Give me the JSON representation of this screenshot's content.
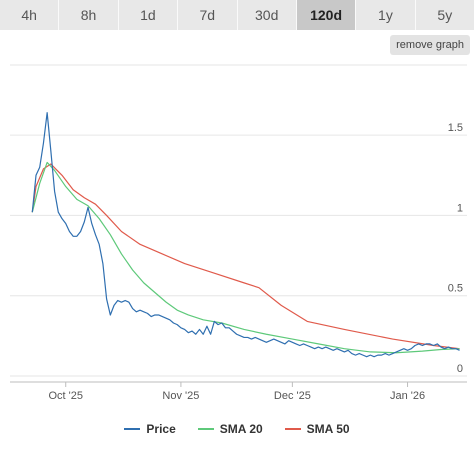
{
  "tabs": [
    {
      "label": "4h",
      "active": false
    },
    {
      "label": "8h",
      "active": false
    },
    {
      "label": "1d",
      "active": false
    },
    {
      "label": "7d",
      "active": false
    },
    {
      "label": "30d",
      "active": false
    },
    {
      "label": "120d",
      "active": true
    },
    {
      "label": "1y",
      "active": false
    },
    {
      "label": "5y",
      "active": false
    }
  ],
  "remove_graph_label": "remove graph",
  "chart_data": {
    "type": "line",
    "title": "",
    "xlabel": "",
    "ylabel": "",
    "ylim": [
      0,
      1.75
    ],
    "grid": true,
    "y_ticks": [
      {
        "value": 0,
        "label": "0"
      },
      {
        "value": 0.5,
        "label": "0.5"
      },
      {
        "value": 1,
        "label": "1"
      },
      {
        "value": 1.5,
        "label": "1.5"
      }
    ],
    "x_ticks": [
      {
        "value": "2025-10-01",
        "label": "Oct '25"
      },
      {
        "value": "2025-11-01",
        "label": "Nov '25"
      },
      {
        "value": "2025-12-01",
        "label": "Dec '25"
      },
      {
        "value": "2026-01-01",
        "label": "Jan '26"
      }
    ],
    "legend_position": "bottom",
    "series": [
      {
        "name": "Price",
        "color": "#2f6fb0",
        "points": [
          [
            "2025-09-22",
            1.02
          ],
          [
            "2025-09-23",
            1.25
          ],
          [
            "2025-09-24",
            1.3
          ],
          [
            "2025-09-25",
            1.45
          ],
          [
            "2025-09-26",
            1.64
          ],
          [
            "2025-09-27",
            1.4
          ],
          [
            "2025-09-28",
            1.15
          ],
          [
            "2025-09-29",
            1.02
          ],
          [
            "2025-09-30",
            0.98
          ],
          [
            "2025-10-01",
            0.95
          ],
          [
            "2025-10-02",
            0.9
          ],
          [
            "2025-10-03",
            0.87
          ],
          [
            "2025-10-04",
            0.87
          ],
          [
            "2025-10-05",
            0.9
          ],
          [
            "2025-10-06",
            0.96
          ],
          [
            "2025-10-07",
            1.05
          ],
          [
            "2025-10-08",
            0.95
          ],
          [
            "2025-10-09",
            0.88
          ],
          [
            "2025-10-10",
            0.82
          ],
          [
            "2025-10-11",
            0.7
          ],
          [
            "2025-10-12",
            0.48
          ],
          [
            "2025-10-13",
            0.38
          ],
          [
            "2025-10-14",
            0.44
          ],
          [
            "2025-10-15",
            0.47
          ],
          [
            "2025-10-16",
            0.46
          ],
          [
            "2025-10-17",
            0.47
          ],
          [
            "2025-10-18",
            0.46
          ],
          [
            "2025-10-19",
            0.42
          ],
          [
            "2025-10-20",
            0.4
          ],
          [
            "2025-10-21",
            0.41
          ],
          [
            "2025-10-22",
            0.4
          ],
          [
            "2025-10-23",
            0.39
          ],
          [
            "2025-10-24",
            0.37
          ],
          [
            "2025-10-25",
            0.38
          ],
          [
            "2025-10-26",
            0.38
          ],
          [
            "2025-10-27",
            0.37
          ],
          [
            "2025-10-28",
            0.36
          ],
          [
            "2025-10-29",
            0.35
          ],
          [
            "2025-10-30",
            0.33
          ],
          [
            "2025-10-31",
            0.32
          ],
          [
            "2025-11-01",
            0.3
          ],
          [
            "2025-11-02",
            0.29
          ],
          [
            "2025-11-03",
            0.27
          ],
          [
            "2025-11-04",
            0.28
          ],
          [
            "2025-11-05",
            0.26
          ],
          [
            "2025-11-06",
            0.29
          ],
          [
            "2025-11-07",
            0.26
          ],
          [
            "2025-11-08",
            0.31
          ],
          [
            "2025-11-09",
            0.26
          ],
          [
            "2025-11-10",
            0.34
          ],
          [
            "2025-11-11",
            0.32
          ],
          [
            "2025-11-12",
            0.33
          ],
          [
            "2025-11-13",
            0.3
          ],
          [
            "2025-11-14",
            0.3
          ],
          [
            "2025-11-15",
            0.28
          ],
          [
            "2025-11-16",
            0.26
          ],
          [
            "2025-11-17",
            0.25
          ],
          [
            "2025-11-18",
            0.24
          ],
          [
            "2025-11-19",
            0.24
          ],
          [
            "2025-11-20",
            0.23
          ],
          [
            "2025-11-21",
            0.24
          ],
          [
            "2025-11-22",
            0.23
          ],
          [
            "2025-11-23",
            0.22
          ],
          [
            "2025-11-24",
            0.21
          ],
          [
            "2025-11-25",
            0.22
          ],
          [
            "2025-11-26",
            0.23
          ],
          [
            "2025-11-27",
            0.22
          ],
          [
            "2025-11-28",
            0.21
          ],
          [
            "2025-11-29",
            0.2
          ],
          [
            "2025-11-30",
            0.22
          ],
          [
            "2025-12-01",
            0.21
          ],
          [
            "2025-12-02",
            0.2
          ],
          [
            "2025-12-03",
            0.19
          ],
          [
            "2025-12-04",
            0.2
          ],
          [
            "2025-12-05",
            0.19
          ],
          [
            "2025-12-06",
            0.18
          ],
          [
            "2025-12-07",
            0.17
          ],
          [
            "2025-12-08",
            0.18
          ],
          [
            "2025-12-09",
            0.17
          ],
          [
            "2025-12-10",
            0.18
          ],
          [
            "2025-12-11",
            0.17
          ],
          [
            "2025-12-12",
            0.16
          ],
          [
            "2025-12-13",
            0.17
          ],
          [
            "2025-12-14",
            0.16
          ],
          [
            "2025-12-15",
            0.15
          ],
          [
            "2025-12-16",
            0.16
          ],
          [
            "2025-12-17",
            0.14
          ],
          [
            "2025-12-18",
            0.13
          ],
          [
            "2025-12-19",
            0.14
          ],
          [
            "2025-12-20",
            0.13
          ],
          [
            "2025-12-21",
            0.12
          ],
          [
            "2025-12-22",
            0.13
          ],
          [
            "2025-12-23",
            0.12
          ],
          [
            "2025-12-24",
            0.13
          ],
          [
            "2025-12-25",
            0.13
          ],
          [
            "2025-12-26",
            0.14
          ],
          [
            "2025-12-27",
            0.13
          ],
          [
            "2025-12-28",
            0.14
          ],
          [
            "2025-12-29",
            0.15
          ],
          [
            "2025-12-30",
            0.16
          ],
          [
            "2025-12-31",
            0.17
          ],
          [
            "2026-01-01",
            0.16
          ],
          [
            "2026-01-02",
            0.17
          ],
          [
            "2026-01-03",
            0.19
          ],
          [
            "2026-01-04",
            0.2
          ],
          [
            "2026-01-05",
            0.19
          ],
          [
            "2026-01-06",
            0.2
          ],
          [
            "2026-01-07",
            0.2
          ],
          [
            "2026-01-08",
            0.19
          ],
          [
            "2026-01-09",
            0.2
          ],
          [
            "2026-01-10",
            0.18
          ],
          [
            "2026-01-11",
            0.17
          ],
          [
            "2026-01-12",
            0.18
          ],
          [
            "2026-01-13",
            0.17
          ],
          [
            "2026-01-14",
            0.17
          ],
          [
            "2026-01-15",
            0.16
          ]
        ]
      },
      {
        "name": "SMA 20",
        "color": "#5ec97a",
        "points": [
          [
            "2025-09-22",
            1.02
          ],
          [
            "2025-09-24",
            1.2
          ],
          [
            "2025-09-26",
            1.33
          ],
          [
            "2025-09-28",
            1.28
          ],
          [
            "2025-10-01",
            1.18
          ],
          [
            "2025-10-04",
            1.1
          ],
          [
            "2025-10-07",
            1.06
          ],
          [
            "2025-10-10",
            0.98
          ],
          [
            "2025-10-13",
            0.88
          ],
          [
            "2025-10-16",
            0.76
          ],
          [
            "2025-10-19",
            0.66
          ],
          [
            "2025-10-22",
            0.58
          ],
          [
            "2025-10-25",
            0.52
          ],
          [
            "2025-10-28",
            0.46
          ],
          [
            "2025-10-31",
            0.41
          ],
          [
            "2025-11-03",
            0.38
          ],
          [
            "2025-11-07",
            0.35
          ],
          [
            "2025-11-12",
            0.33
          ],
          [
            "2025-11-18",
            0.29
          ],
          [
            "2025-11-24",
            0.26
          ],
          [
            "2025-12-01",
            0.23
          ],
          [
            "2025-12-08",
            0.2
          ],
          [
            "2025-12-15",
            0.17
          ],
          [
            "2025-12-22",
            0.15
          ],
          [
            "2025-12-29",
            0.145
          ],
          [
            "2026-01-05",
            0.155
          ],
          [
            "2026-01-10",
            0.165
          ],
          [
            "2026-01-15",
            0.17
          ]
        ]
      },
      {
        "name": "SMA 50",
        "color": "#e05a4b",
        "points": [
          [
            "2025-09-22",
            1.02
          ],
          [
            "2025-09-23",
            1.18
          ],
          [
            "2025-09-25",
            1.29
          ],
          [
            "2025-09-27",
            1.32
          ],
          [
            "2025-09-30",
            1.25
          ],
          [
            "2025-10-03",
            1.16
          ],
          [
            "2025-10-06",
            1.11
          ],
          [
            "2025-10-09",
            1.07
          ],
          [
            "2025-10-12",
            1.0
          ],
          [
            "2025-10-16",
            0.9
          ],
          [
            "2025-10-21",
            0.82
          ],
          [
            "2025-10-27",
            0.76
          ],
          [
            "2025-11-02",
            0.7
          ],
          [
            "2025-11-10",
            0.64
          ],
          [
            "2025-11-18",
            0.58
          ],
          [
            "2025-11-22",
            0.55
          ],
          [
            "2025-11-28",
            0.44
          ],
          [
            "2025-12-05",
            0.34
          ],
          [
            "2025-12-15",
            0.29
          ],
          [
            "2025-12-28",
            0.23
          ],
          [
            "2026-01-08",
            0.19
          ],
          [
            "2026-01-15",
            0.17
          ]
        ]
      }
    ]
  }
}
